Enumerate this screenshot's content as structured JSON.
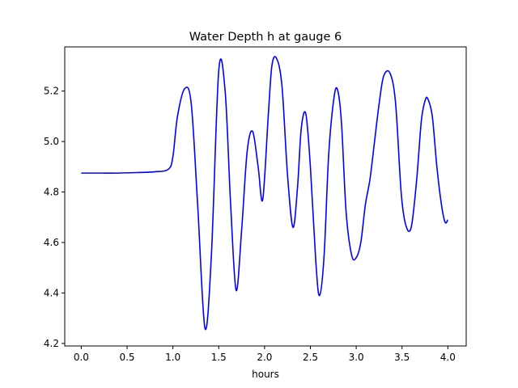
{
  "chart_data": {
    "type": "line",
    "title": "Water Depth h at gauge 6",
    "xlabel": "hours",
    "ylabel": "",
    "xlim": [
      -0.18,
      4.2
    ],
    "ylim": [
      4.19,
      5.375
    ],
    "xticks": [
      0.0,
      0.5,
      1.0,
      1.5,
      2.0,
      2.5,
      3.0,
      3.5,
      4.0
    ],
    "xtick_labels": [
      "0.0",
      "0.5",
      "1.0",
      "1.5",
      "2.0",
      "2.5",
      "3.0",
      "3.5",
      "4.0"
    ],
    "yticks": [
      4.2,
      4.4,
      4.6,
      4.8,
      5.0,
      5.2
    ],
    "ytick_labels": [
      "4.2",
      "4.4",
      "4.6",
      "4.8",
      "5.0",
      "5.2"
    ],
    "grid": false,
    "series": [
      {
        "color": "#0000ff",
        "x": [
          0.0,
          0.2,
          0.4,
          0.6,
          0.8,
          0.95,
          1.0,
          1.05,
          1.13,
          1.2,
          1.27,
          1.35,
          1.42,
          1.5,
          1.57,
          1.63,
          1.69,
          1.75,
          1.81,
          1.87,
          1.93,
          1.98,
          2.04,
          2.08,
          2.13,
          2.19,
          2.25,
          2.31,
          2.36,
          2.4,
          2.45,
          2.5,
          2.56,
          2.6,
          2.65,
          2.7,
          2.76,
          2.8,
          2.84,
          2.89,
          2.95,
          3.0,
          3.05,
          3.1,
          3.15,
          3.2,
          3.25,
          3.3,
          3.37,
          3.43,
          3.49,
          3.54,
          3.6,
          3.66,
          3.71,
          3.75,
          3.78,
          3.83,
          3.88,
          3.93,
          3.97,
          4.0
        ],
        "y": [
          4.875,
          4.875,
          4.875,
          4.877,
          4.88,
          4.89,
          4.94,
          5.1,
          5.21,
          5.15,
          4.75,
          4.26,
          4.55,
          5.28,
          5.2,
          4.75,
          4.41,
          4.65,
          4.96,
          5.04,
          4.9,
          4.77,
          5.1,
          5.3,
          5.33,
          5.22,
          4.87,
          4.66,
          4.82,
          5.05,
          5.11,
          4.9,
          4.52,
          4.39,
          4.55,
          4.95,
          5.18,
          5.2,
          5.07,
          4.72,
          4.55,
          4.54,
          4.6,
          4.75,
          4.85,
          5.0,
          5.15,
          5.26,
          5.27,
          5.15,
          4.8,
          4.67,
          4.66,
          4.85,
          5.08,
          5.16,
          5.17,
          5.1,
          4.9,
          4.75,
          4.68,
          4.69
        ]
      }
    ]
  }
}
